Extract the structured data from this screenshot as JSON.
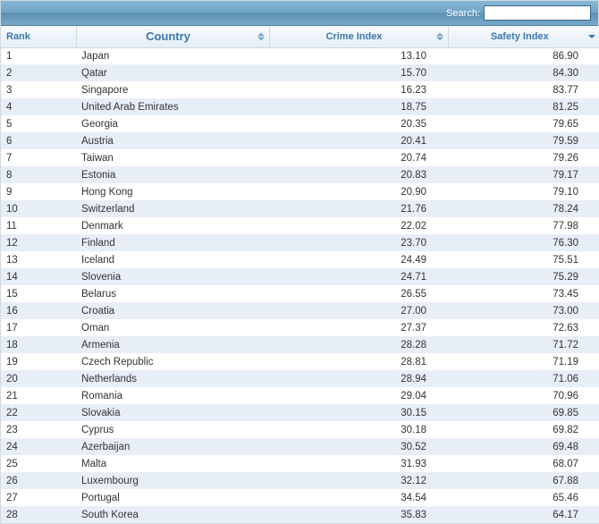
{
  "search": {
    "label": "Search:",
    "value": ""
  },
  "columns": {
    "rank": "Rank",
    "country": "Country",
    "crime": "Crime Index",
    "safety": "Safety Index"
  },
  "rows": [
    {
      "rank": "1",
      "country": "Japan",
      "crime": "13.10",
      "safety": "86.90"
    },
    {
      "rank": "2",
      "country": "Qatar",
      "crime": "15.70",
      "safety": "84.30"
    },
    {
      "rank": "3",
      "country": "Singapore",
      "crime": "16.23",
      "safety": "83.77"
    },
    {
      "rank": "4",
      "country": "United Arab Emirates",
      "crime": "18.75",
      "safety": "81.25"
    },
    {
      "rank": "5",
      "country": "Georgia",
      "crime": "20.35",
      "safety": "79.65"
    },
    {
      "rank": "6",
      "country": "Austria",
      "crime": "20.41",
      "safety": "79.59"
    },
    {
      "rank": "7",
      "country": "Taiwan",
      "crime": "20.74",
      "safety": "79.26"
    },
    {
      "rank": "8",
      "country": "Estonia",
      "crime": "20.83",
      "safety": "79.17"
    },
    {
      "rank": "9",
      "country": "Hong Kong",
      "crime": "20.90",
      "safety": "79.10"
    },
    {
      "rank": "10",
      "country": "Switzerland",
      "crime": "21.76",
      "safety": "78.24"
    },
    {
      "rank": "11",
      "country": "Denmark",
      "crime": "22.02",
      "safety": "77.98"
    },
    {
      "rank": "12",
      "country": "Finland",
      "crime": "23.70",
      "safety": "76.30"
    },
    {
      "rank": "13",
      "country": "Iceland",
      "crime": "24.49",
      "safety": "75.51"
    },
    {
      "rank": "14",
      "country": "Slovenia",
      "crime": "24.71",
      "safety": "75.29"
    },
    {
      "rank": "15",
      "country": "Belarus",
      "crime": "26.55",
      "safety": "73.45"
    },
    {
      "rank": "16",
      "country": "Croatia",
      "crime": "27.00",
      "safety": "73.00"
    },
    {
      "rank": "17",
      "country": "Oman",
      "crime": "27.37",
      "safety": "72.63"
    },
    {
      "rank": "18",
      "country": "Armenia",
      "crime": "28.28",
      "safety": "71.72"
    },
    {
      "rank": "19",
      "country": "Czech Republic",
      "crime": "28.81",
      "safety": "71.19"
    },
    {
      "rank": "20",
      "country": "Netherlands",
      "crime": "28.94",
      "safety": "71.06"
    },
    {
      "rank": "21",
      "country": "Romania",
      "crime": "29.04",
      "safety": "70.96"
    },
    {
      "rank": "22",
      "country": "Slovakia",
      "crime": "30.15",
      "safety": "69.85"
    },
    {
      "rank": "23",
      "country": "Cyprus",
      "crime": "30.18",
      "safety": "69.82"
    },
    {
      "rank": "24",
      "country": "Azerbaijan",
      "crime": "30.52",
      "safety": "69.48"
    },
    {
      "rank": "25",
      "country": "Malta",
      "crime": "31.93",
      "safety": "68.07"
    },
    {
      "rank": "26",
      "country": "Luxembourg",
      "crime": "32.12",
      "safety": "67.88"
    },
    {
      "rank": "27",
      "country": "Portugal",
      "crime": "34.54",
      "safety": "65.46"
    },
    {
      "rank": "28",
      "country": "South Korea",
      "crime": "35.83",
      "safety": "64.17"
    }
  ]
}
